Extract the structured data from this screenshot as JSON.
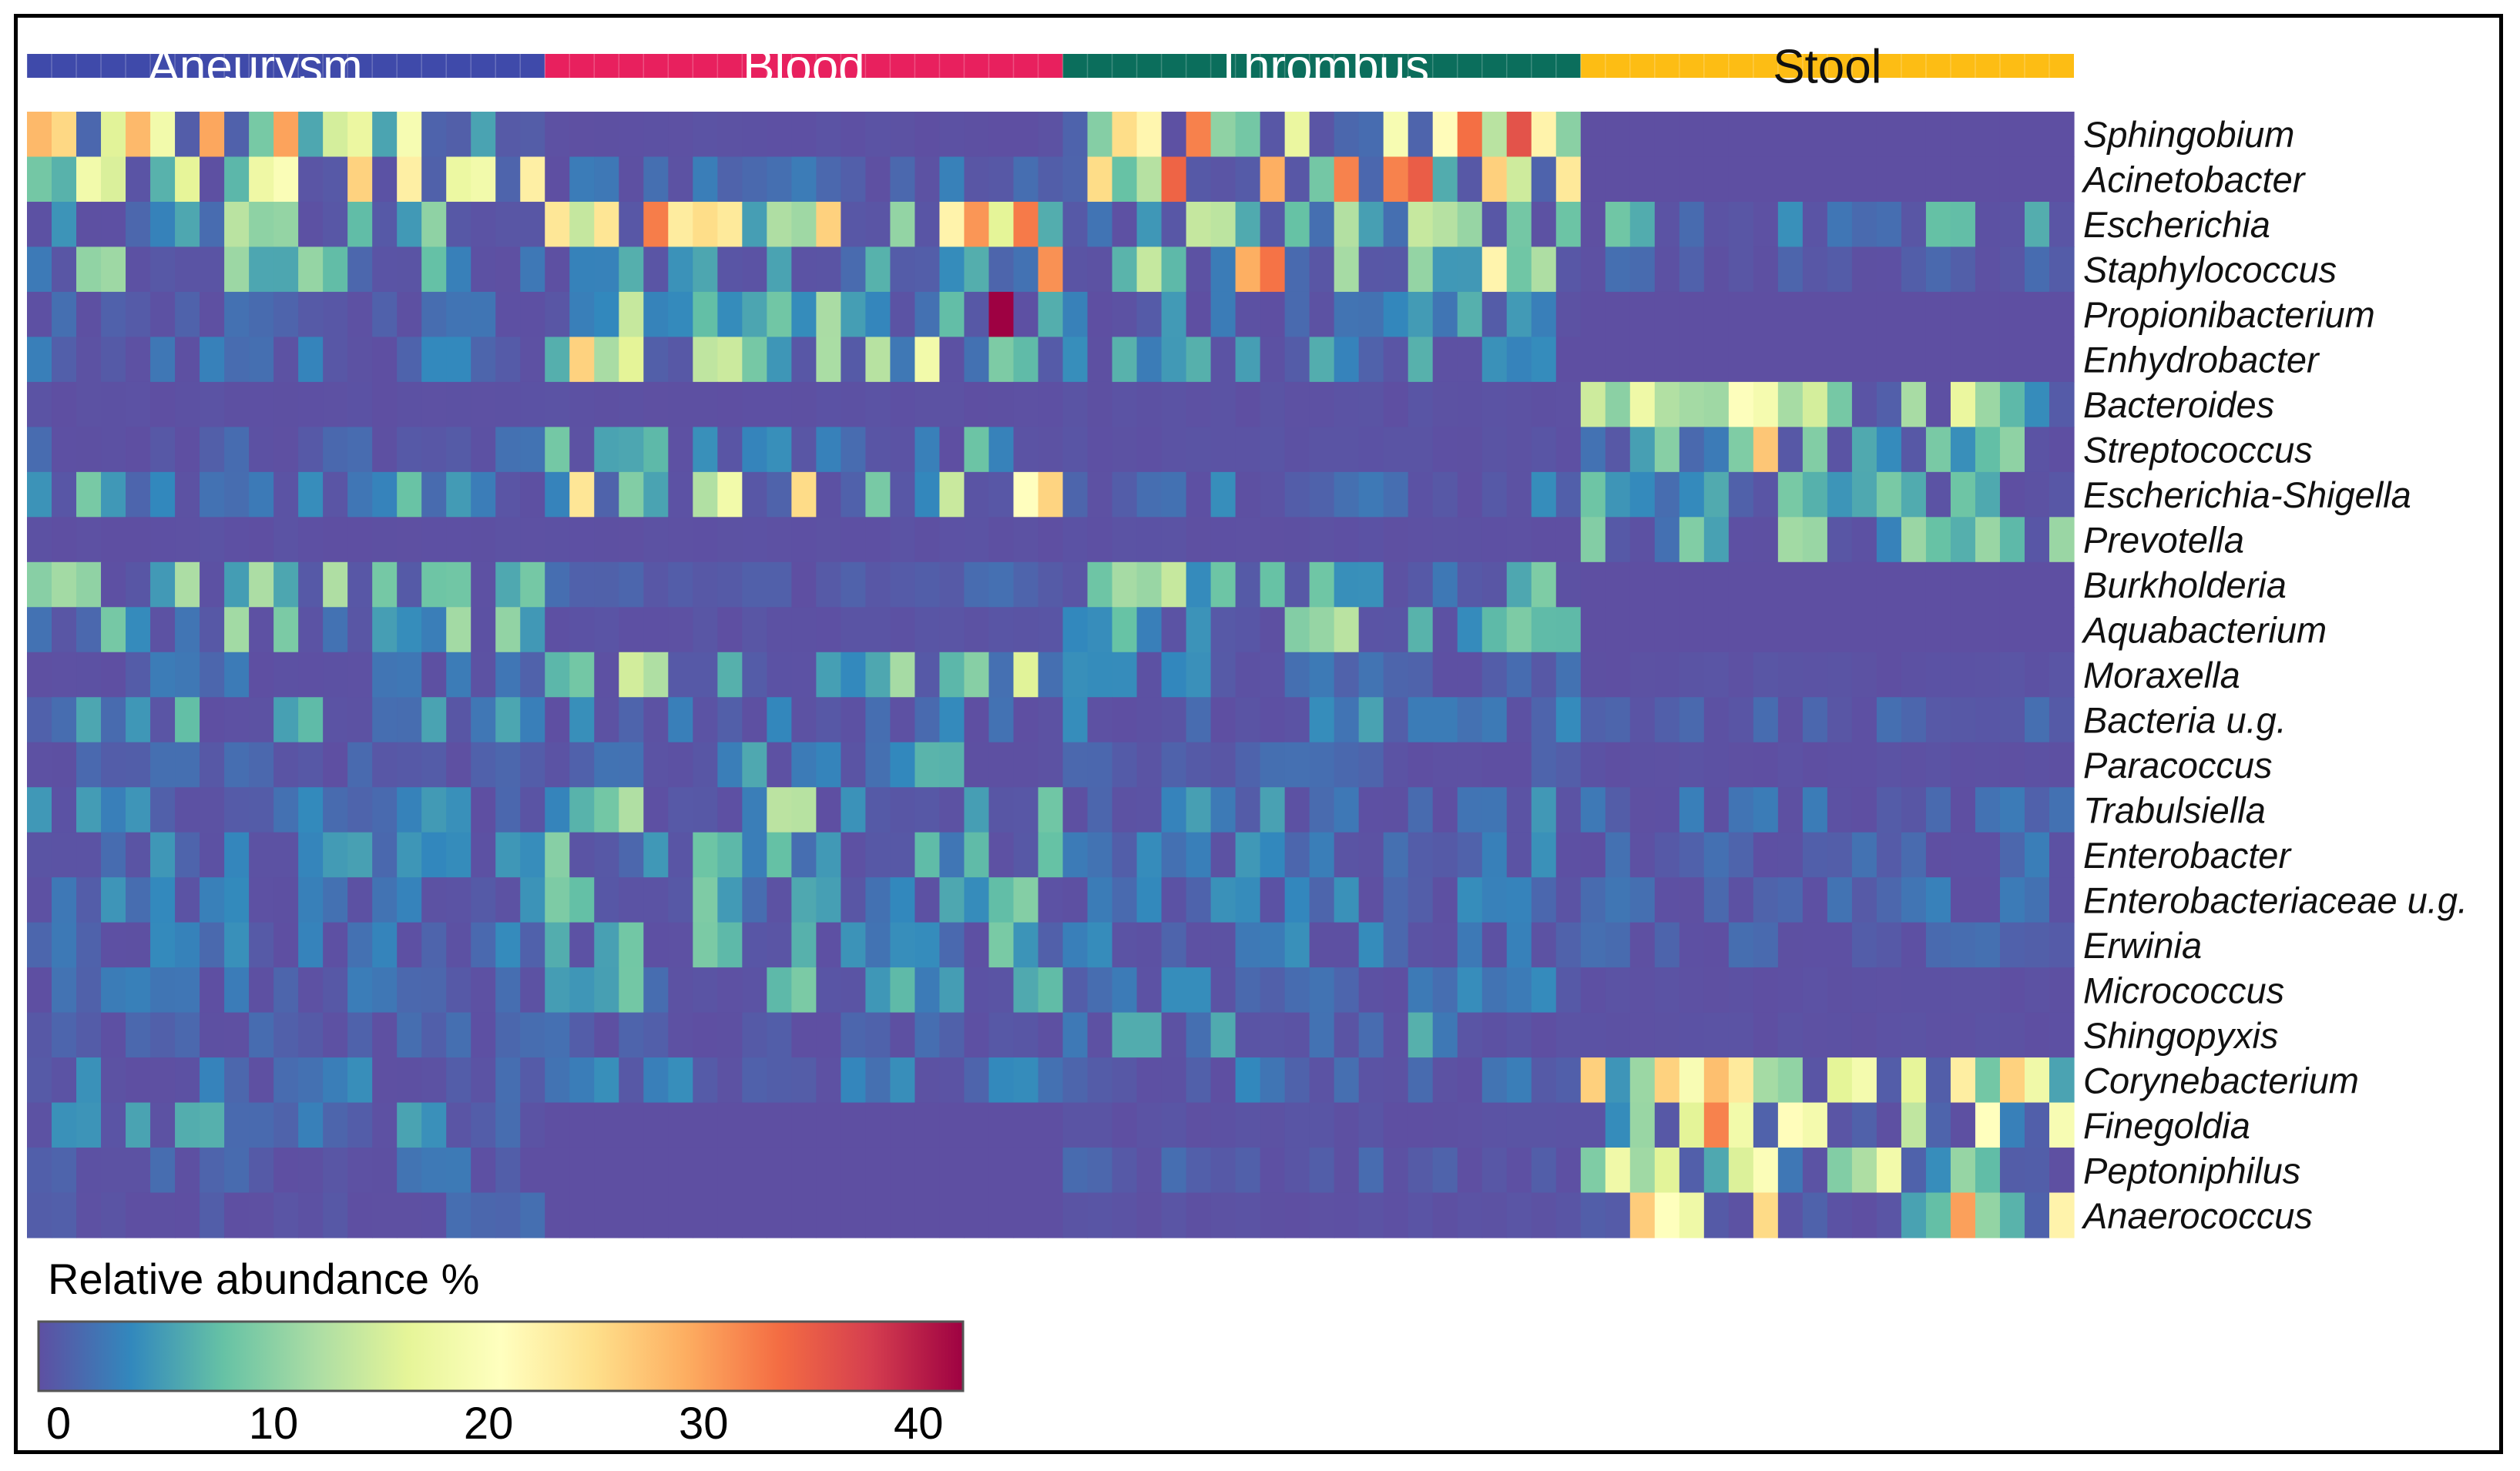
{
  "chart_data": {
    "type": "heatmap",
    "title": "",
    "groups": [
      {
        "name": "Aneurysm",
        "samples": 21,
        "color": "#3f4aaa",
        "text_color": "#ffffff"
      },
      {
        "name": "Blood",
        "samples": 21,
        "color": "#e8205e",
        "text_color": "#ffffff"
      },
      {
        "name": "Thrombus",
        "samples": 21,
        "color": "#0b6e5c",
        "text_color": "#ffffff"
      },
      {
        "name": "Stool",
        "samples": 20,
        "color": "#fdbd14",
        "text_color": "#111111"
      }
    ],
    "rows": [
      "Sphingobium",
      "Acinetobacter",
      "Escherichia",
      "Staphylococcus",
      "Propionibacterium",
      "Enhydrobacter",
      "Bacteroides",
      "Streptococcus",
      "Escherichia-Shigella",
      "Prevotella",
      "Burkholderia",
      "Aquabacterium",
      "Moraxella",
      "Bacteria u.g.",
      "Paracoccus",
      "Trabulsiella",
      "Enterobacter",
      "Enterobacteriaceae u.g.",
      "Erwinia",
      "Micrococcus",
      "Shingopyxis",
      "Corynebacterium",
      "Finegoldia",
      "Peptoniphilus",
      "Anaerococcus"
    ],
    "colorbar": {
      "title": "Relative abundance %",
      "min": 0,
      "max": 43,
      "ticks": [
        0,
        10,
        20,
        30,
        40
      ],
      "colors": [
        "#5e4fa2",
        "#3288bd",
        "#66c2a5",
        "#abdda4",
        "#e6f598",
        "#ffffbf",
        "#fee08b",
        "#fdae61",
        "#f46d43",
        "#d53e4f",
        "#9e0142"
      ]
    },
    "row_profiles": [
      {
        "Aneurysm": 13,
        "Blood": 0.3,
        "Thrombus": 15,
        "Stool": 0
      },
      {
        "Aneurysm": 11,
        "Blood": 1.5,
        "Thrombus": 15,
        "Stool": 0
      },
      {
        "Aneurysm": 6,
        "Blood": 14,
        "Thrombus": 6,
        "Stool": 4
      },
      {
        "Aneurysm": 5,
        "Blood": 3,
        "Thrombus": 6,
        "Stool": 1
      },
      {
        "Aneurysm": 1.2,
        "Blood": 6,
        "Thrombus": 3,
        "Stool": 0
      },
      {
        "Aneurysm": 2,
        "Blood": 8,
        "Thrombus": 3,
        "Stool": 0
      },
      {
        "Aneurysm": 0.3,
        "Blood": 0.3,
        "Thrombus": 0.5,
        "Stool": 10
      },
      {
        "Aneurysm": 1.2,
        "Blood": 4,
        "Thrombus": 0.5,
        "Stool": 5
      },
      {
        "Aneurysm": 4,
        "Blood": 11,
        "Thrombus": 2,
        "Stool": 4
      },
      {
        "Aneurysm": 0.3,
        "Blood": 0.3,
        "Thrombus": 0.3,
        "Stool": 5
      },
      {
        "Aneurysm": 6,
        "Blood": 1,
        "Thrombus": 6,
        "Stool": 0
      },
      {
        "Aneurysm": 5,
        "Blood": 0.5,
        "Thrombus": 6,
        "Stool": 0
      },
      {
        "Aneurysm": 1.5,
        "Blood": 7,
        "Thrombus": 2,
        "Stool": 0.5
      },
      {
        "Aneurysm": 4,
        "Blood": 2,
        "Thrombus": 2.5,
        "Stool": 1
      },
      {
        "Aneurysm": 1,
        "Blood": 4,
        "Thrombus": 1,
        "Stool": 0.3
      },
      {
        "Aneurysm": 2.5,
        "Blood": 6,
        "Thrombus": 2.5,
        "Stool": 1.5
      },
      {
        "Aneurysm": 2.5,
        "Blood": 5,
        "Thrombus": 2.5,
        "Stool": 1.5
      },
      {
        "Aneurysm": 2.5,
        "Blood": 5,
        "Thrombus": 2,
        "Stool": 1.5
      },
      {
        "Aneurysm": 2,
        "Blood": 4,
        "Thrombus": 2,
        "Stool": 1
      },
      {
        "Aneurysm": 1.5,
        "Blood": 4,
        "Thrombus": 2,
        "Stool": 0.3
      },
      {
        "Aneurysm": 1,
        "Blood": 1,
        "Thrombus": 3,
        "Stool": 0.3
      },
      {
        "Aneurysm": 2,
        "Blood": 2,
        "Thrombus": 2,
        "Stool": 12
      },
      {
        "Aneurysm": 3,
        "Blood": 0,
        "Thrombus": 0.5,
        "Stool": 11
      },
      {
        "Aneurysm": 1.5,
        "Blood": 0,
        "Thrombus": 1,
        "Stool": 10
      },
      {
        "Aneurysm": 1,
        "Blood": 0,
        "Thrombus": 0.5,
        "Stool": 11
      }
    ],
    "highlights": [
      {
        "row": "Propionibacterium",
        "sample": 39,
        "value": 43
      },
      {
        "row": "Acinetobacter",
        "sample": 53,
        "value": 33
      },
      {
        "row": "Staphylococcus",
        "sample": 49,
        "value": 30
      },
      {
        "row": "Staphylococcus",
        "sample": 50,
        "value": 34
      },
      {
        "row": "Staphylococcus",
        "sample": 41,
        "value": 32
      },
      {
        "row": "Finegoldia",
        "sample": 68,
        "value": 33
      },
      {
        "row": "Anaerococcus",
        "sample": 78,
        "value": 31
      },
      {
        "row": "Streptococcus",
        "sample": 70,
        "value": 28
      },
      {
        "row": "Corynebacterium",
        "sample": 66,
        "value": 27
      },
      {
        "row": "Corynebacterium",
        "sample": 80,
        "value": 27
      },
      {
        "row": "Acinetobacter",
        "sample": 13,
        "value": 27
      },
      {
        "row": "Escherichia",
        "sample": 27,
        "value": 26
      },
      {
        "row": "Escherichia",
        "sample": 23,
        "value": 25
      },
      {
        "row": "Enhydrobacter",
        "sample": 22,
        "value": 27
      },
      {
        "row": "Sphingobium",
        "sample": 44,
        "value": 26
      },
      {
        "row": "Staphylococcus",
        "sample": 59,
        "value": 23
      }
    ]
  }
}
